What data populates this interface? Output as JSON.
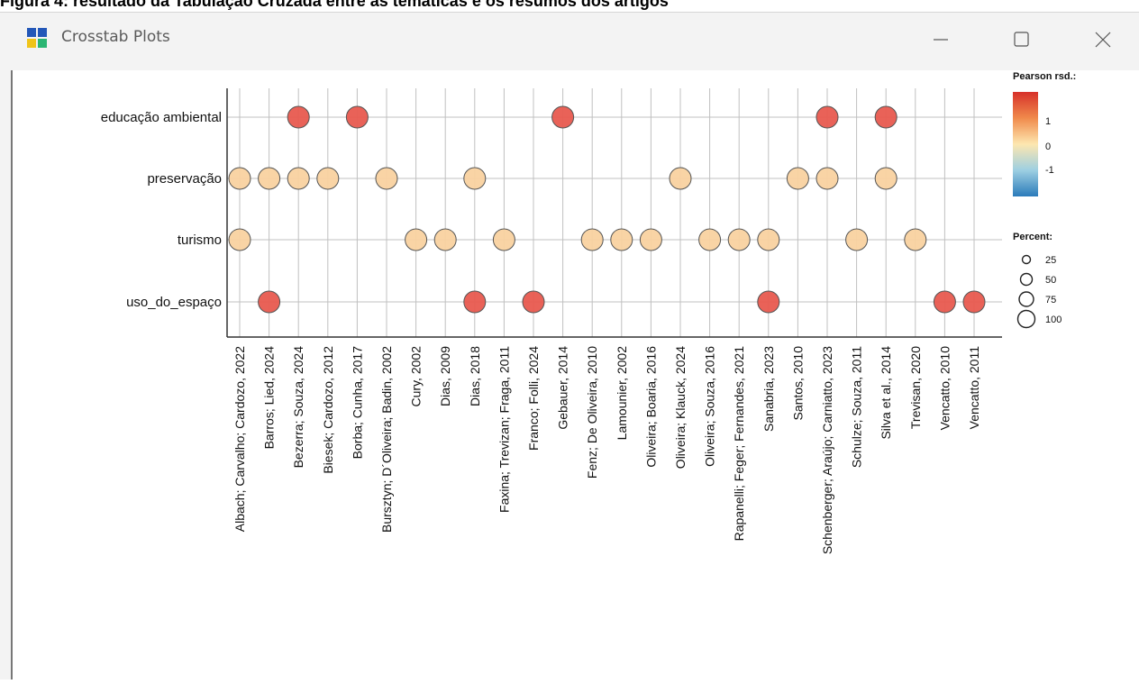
{
  "caption": "Figura 4: resultado da Tabulação Cruzada entre as temáticas e os resumos dos artigos",
  "window": {
    "title": "Crosstab Plots",
    "icon": "grid-icon",
    "controls": [
      "minimize-icon",
      "maximize-icon",
      "close-icon"
    ]
  },
  "colors": {
    "high": "#e85a4f",
    "neutral": "#f9d2a0",
    "grid": "#c0c0c0",
    "axis": "#333333"
  },
  "chart_data": {
    "type": "heatmap",
    "rows": [
      "educação ambiental",
      "preservação",
      "turismo",
      "uso_do_espaço"
    ],
    "columns": [
      "Albach; Carvalho; Cardozo, 2022",
      "Barros; Lied, 2024",
      "Bezerra; Souza, 2024",
      "Biesek; Cardozo, 2012",
      "Borba; Cunha, 2017",
      "Bursztyn; D´Oliveira; Badin, 2002",
      "Cury, 2002",
      "Dias, 2009",
      "Dias, 2018",
      "Faxina; Trevizan; Fraga, 2011",
      "Franco; Folli, 2024",
      "Gebauer, 2014",
      "Fenz; De Oliveira, 2010",
      "Lamounier, 2002",
      "Oliveira; Boaria, 2016",
      "Oliveira; Klauck, 2024",
      "Oliveira; Souza, 2016",
      "Rapanelli; Feger; Fernandes, 2021",
      "Sanabria, 2023",
      "Santos, 2010",
      "Schenberger; Araújo; Carniatto, 2023",
      "Schulze; Souza, 2011",
      "Silva et al., 2014",
      "Trevisan, 2020",
      "Vencatto, 2010",
      "Vencatto, 2011"
    ],
    "points": [
      {
        "row": 0,
        "col": 2,
        "residual": 1.5
      },
      {
        "row": 0,
        "col": 4,
        "residual": 1.5
      },
      {
        "row": 0,
        "col": 11,
        "residual": 1.5
      },
      {
        "row": 0,
        "col": 20,
        "residual": 1.5
      },
      {
        "row": 0,
        "col": 22,
        "residual": 1.5
      },
      {
        "row": 1,
        "col": 0,
        "residual": 0.5
      },
      {
        "row": 1,
        "col": 1,
        "residual": 0.5
      },
      {
        "row": 1,
        "col": 2,
        "residual": 0.5
      },
      {
        "row": 1,
        "col": 3,
        "residual": 0.5
      },
      {
        "row": 1,
        "col": 5,
        "residual": 0.5
      },
      {
        "row": 1,
        "col": 8,
        "residual": 0.5
      },
      {
        "row": 1,
        "col": 15,
        "residual": 0.5
      },
      {
        "row": 1,
        "col": 19,
        "residual": 0.5
      },
      {
        "row": 1,
        "col": 20,
        "residual": 0.5
      },
      {
        "row": 1,
        "col": 22,
        "residual": 0.5
      },
      {
        "row": 2,
        "col": 0,
        "residual": 0.5
      },
      {
        "row": 2,
        "col": 6,
        "residual": 0.5
      },
      {
        "row": 2,
        "col": 7,
        "residual": 0.5
      },
      {
        "row": 2,
        "col": 9,
        "residual": 0.5
      },
      {
        "row": 2,
        "col": 12,
        "residual": 0.5
      },
      {
        "row": 2,
        "col": 13,
        "residual": 0.5
      },
      {
        "row": 2,
        "col": 14,
        "residual": 0.5
      },
      {
        "row": 2,
        "col": 16,
        "residual": 0.5
      },
      {
        "row": 2,
        "col": 17,
        "residual": 0.5
      },
      {
        "row": 2,
        "col": 18,
        "residual": 0.5
      },
      {
        "row": 2,
        "col": 21,
        "residual": 0.5
      },
      {
        "row": 2,
        "col": 23,
        "residual": 0.5
      },
      {
        "row": 3,
        "col": 1,
        "residual": 1.5
      },
      {
        "row": 3,
        "col": 8,
        "residual": 1.5
      },
      {
        "row": 3,
        "col": 10,
        "residual": 1.5
      },
      {
        "row": 3,
        "col": 18,
        "residual": 1.5
      },
      {
        "row": 3,
        "col": 24,
        "residual": 1.5
      },
      {
        "row": 3,
        "col": 25,
        "residual": 1.5
      }
    ],
    "percent_all": 100,
    "color_legend": {
      "title": "Pearson rsd.:",
      "ticks": [
        "1",
        "0",
        "-1"
      ],
      "values": [
        1,
        0,
        -1
      ]
    },
    "size_legend": {
      "title": "Percent:",
      "ticks": [
        "25",
        "50",
        "75",
        "100"
      ],
      "values": [
        25,
        50,
        75,
        100
      ]
    },
    "legend_position": "right",
    "grid": true
  }
}
